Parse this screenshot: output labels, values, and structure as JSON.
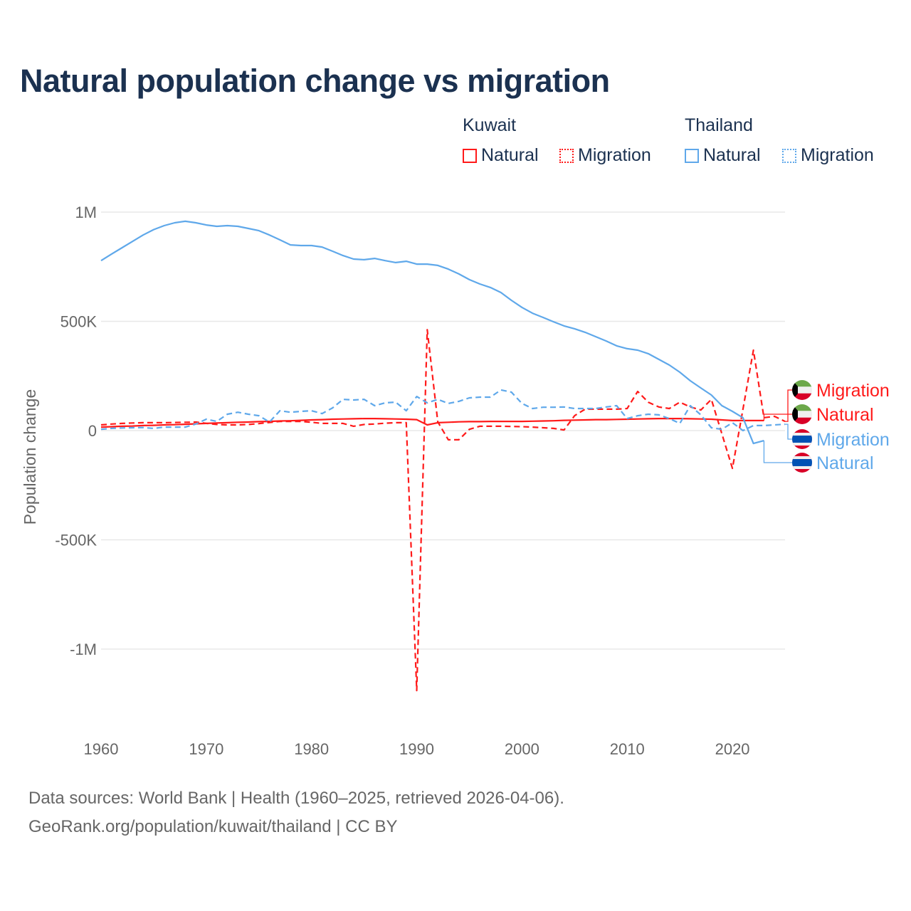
{
  "title": "Natural population change vs migration",
  "legend": {
    "groups": [
      {
        "name": "Kuwait",
        "items": [
          "Natural",
          "Migration"
        ],
        "color": "#ff1a1a"
      },
      {
        "name": "Thailand",
        "items": [
          "Natural",
          "Migration"
        ],
        "color": "#5fa8ea"
      }
    ]
  },
  "footer": {
    "line1": "Data sources: World Bank | Health (1960–2025, retrieved 2026-04-06).",
    "line2": "GeoRank.org/population/kuwait/thailand | CC BY"
  },
  "chart_data": {
    "type": "line",
    "title": "Natural population change vs migration",
    "xlabel": "",
    "ylabel": "Population change",
    "xlim": [
      1960,
      2025
    ],
    "ylim": [
      -1200000,
      1000000
    ],
    "x_ticks": [
      1960,
      1970,
      1980,
      1990,
      2000,
      2010,
      2020
    ],
    "y_ticks": [
      {
        "value": 1000000,
        "label": "1M"
      },
      {
        "value": 500000,
        "label": "500K"
      },
      {
        "value": 0,
        "label": "0"
      },
      {
        "value": -500000,
        "label": "-500K"
      },
      {
        "value": -1000000,
        "label": "-1M"
      }
    ],
    "grid": true,
    "legend_position": "top-right",
    "series": [
      {
        "name": "Kuwait Natural",
        "end_label": "Natural",
        "country": "Kuwait",
        "style": "solid",
        "color": "#ff1a1a",
        "start_year": 1960,
        "values": [
          16000,
          18000,
          20000,
          21000,
          23000,
          24000,
          26000,
          27000,
          29000,
          31000,
          33000,
          35000,
          36000,
          38000,
          39000,
          41000,
          42000,
          44000,
          45000,
          47000,
          49000,
          50000,
          52000,
          53000,
          54000,
          55000,
          55000,
          54000,
          53000,
          52000,
          50000,
          26000,
          36000,
          38000,
          40000,
          41000,
          41000,
          42000,
          42000,
          42000,
          42000,
          43000,
          44000,
          45000,
          47000,
          48000,
          49000,
          50000,
          50000,
          51000,
          52000,
          53000,
          54000,
          55000,
          55000,
          55000,
          54000,
          53000,
          52000,
          49000,
          46000,
          46000,
          46000,
          46000
        ]
      },
      {
        "name": "Kuwait Migration",
        "end_label": "Migration",
        "country": "Kuwait",
        "style": "dashed",
        "color": "#ff1a1a",
        "start_year": 1960,
        "values": [
          26000,
          30000,
          33000,
          35000,
          36000,
          36000,
          36000,
          37000,
          38000,
          39000,
          33000,
          28000,
          26000,
          26000,
          28000,
          32000,
          37000,
          42000,
          42000,
          42000,
          38000,
          33000,
          33000,
          33000,
          20000,
          28000,
          30000,
          34000,
          36000,
          36000,
          -1190000,
          462000,
          40000,
          -42000,
          -42000,
          6000,
          20000,
          20000,
          20000,
          19000,
          18000,
          16000,
          13000,
          10000,
          3000,
          68000,
          98000,
          98000,
          98000,
          98000,
          101000,
          179000,
          130000,
          108000,
          101000,
          130000,
          108000,
          94000,
          143000,
          -15000,
          -173000,
          98000,
          368000,
          59000,
          65000,
          42000
        ]
      },
      {
        "name": "Thailand Natural",
        "end_label": "Natural",
        "country": "Thailand",
        "style": "solid",
        "color": "#5fa8ea",
        "start_year": 1960,
        "values": [
          778000,
          808000,
          837000,
          866000,
          895000,
          920000,
          938000,
          951000,
          958000,
          951000,
          941000,
          935000,
          938000,
          935000,
          925000,
          915000,
          895000,
          873000,
          850000,
          847000,
          847000,
          840000,
          821000,
          801000,
          785000,
          782000,
          788000,
          778000,
          769000,
          775000,
          762000,
          762000,
          756000,
          739000,
          717000,
          691000,
          671000,
          655000,
          632000,
          596000,
          564000,
          537000,
          518000,
          498000,
          479000,
          466000,
          450000,
          430000,
          410000,
          388000,
          375000,
          368000,
          352000,
          326000,
          300000,
          267000,
          228000,
          195000,
          163000,
          114000,
          88000,
          59000,
          -59000,
          -46000
        ]
      },
      {
        "name": "Thailand Migration",
        "end_label": "Migration",
        "country": "Thailand",
        "style": "dashed",
        "color": "#5fa8ea",
        "start_year": 1960,
        "values": [
          6000,
          10000,
          12000,
          13000,
          14000,
          10000,
          16000,
          16000,
          16000,
          30000,
          52000,
          42000,
          75000,
          84000,
          75000,
          68000,
          39000,
          91000,
          84000,
          88000,
          91000,
          78000,
          104000,
          143000,
          140000,
          143000,
          114000,
          127000,
          130000,
          91000,
          156000,
          127000,
          143000,
          124000,
          134000,
          150000,
          153000,
          153000,
          186000,
          176000,
          124000,
          101000,
          107000,
          107000,
          108000,
          101000,
          101000,
          101000,
          108000,
          114000,
          55000,
          68000,
          75000,
          72000,
          55000,
          33000,
          114000,
          72000,
          13000,
          6000,
          36000,
          0,
          23000,
          23000,
          26000,
          29000
        ]
      }
    ]
  }
}
